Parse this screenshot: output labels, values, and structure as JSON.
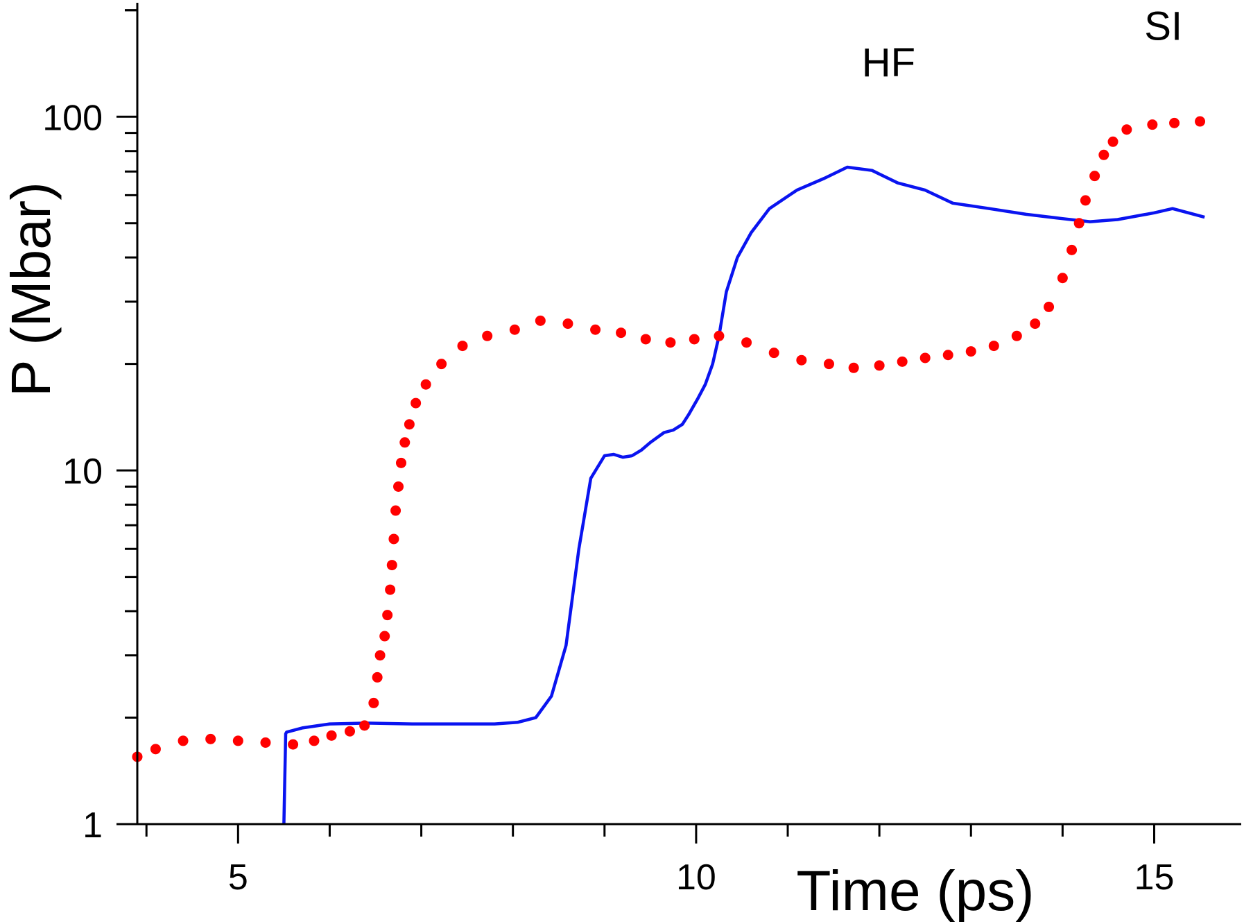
{
  "chart_data": {
    "type": "line",
    "title": "",
    "xlabel": "Time (ps)",
    "ylabel": "P (Mbar)",
    "xlim": [
      3.9,
      15.95
    ],
    "ylim": [
      1,
      210
    ],
    "yscale": "log",
    "grid": false,
    "x_ticks": [
      5,
      10,
      15
    ],
    "x_tick_labels": [
      "5",
      "10",
      "15"
    ],
    "y_ticks": [
      1,
      10,
      100
    ],
    "y_tick_labels": [
      "1",
      "10",
      "100"
    ],
    "series": [
      {
        "name": "HF",
        "style": "solid",
        "color": "#0a14f0",
        "x": [
          5.5,
          5.52,
          5.53,
          5.7,
          6.0,
          6.4,
          6.9,
          7.4,
          7.8,
          8.05,
          8.25,
          8.42,
          8.58,
          8.72,
          8.85,
          9.0,
          9.1,
          9.2,
          9.3,
          9.4,
          9.5,
          9.65,
          9.75,
          9.85,
          9.92,
          10.02,
          10.1,
          10.18,
          10.25,
          10.33,
          10.45,
          10.6,
          10.8,
          11.1,
          11.4,
          11.65,
          11.92,
          12.2,
          12.5,
          12.8,
          13.2,
          13.6,
          14.0,
          14.3,
          14.6,
          15.0,
          15.2,
          15.55
        ],
        "y": [
          1.0,
          1.8,
          1.82,
          1.87,
          1.92,
          1.93,
          1.92,
          1.92,
          1.92,
          1.94,
          2.0,
          2.3,
          3.2,
          6.0,
          9.5,
          11.0,
          11.1,
          10.9,
          11.0,
          11.4,
          12.0,
          12.8,
          13.0,
          13.5,
          14.4,
          16.0,
          17.5,
          20.0,
          24.0,
          32.0,
          40.0,
          47.0,
          55.0,
          62.0,
          67.0,
          72.0,
          70.5,
          65.0,
          62.0,
          57.0,
          55.0,
          53.0,
          51.5,
          50.5,
          51.2,
          53.5,
          55.0,
          52.0
        ]
      },
      {
        "name": "SI",
        "style": "dotted",
        "color": "#ff0000",
        "x": [
          3.9,
          4.1,
          4.4,
          4.7,
          5.0,
          5.3,
          5.6,
          5.83,
          6.02,
          6.22,
          6.38,
          6.48,
          6.52,
          6.55,
          6.6,
          6.63,
          6.66,
          6.68,
          6.7,
          6.72,
          6.75,
          6.78,
          6.82,
          6.87,
          6.94,
          7.05,
          7.22,
          7.45,
          7.72,
          8.02,
          8.3,
          8.6,
          8.9,
          9.18,
          9.45,
          9.72,
          9.98,
          10.25,
          10.55,
          10.85,
          11.15,
          11.45,
          11.72,
          12.0,
          12.25,
          12.5,
          12.75,
          13.0,
          13.25,
          13.5,
          13.7,
          13.85,
          14.0,
          14.1,
          14.18,
          14.25,
          14.35,
          14.45,
          14.55,
          14.7,
          14.98,
          15.22,
          15.5
        ],
        "y": [
          1.55,
          1.63,
          1.72,
          1.74,
          1.72,
          1.7,
          1.68,
          1.72,
          1.78,
          1.83,
          1.9,
          2.2,
          2.6,
          3.0,
          3.4,
          3.9,
          4.6,
          5.4,
          6.4,
          7.7,
          9.0,
          10.5,
          12.0,
          13.5,
          15.5,
          17.5,
          20.0,
          22.5,
          24.0,
          25.0,
          26.5,
          26.0,
          25.0,
          24.5,
          23.5,
          23.0,
          23.5,
          24.0,
          23.0,
          21.5,
          20.5,
          20.0,
          19.5,
          19.8,
          20.3,
          20.8,
          21.2,
          21.7,
          22.5,
          24.0,
          26.0,
          29.0,
          35.0,
          42.0,
          50.0,
          58.0,
          68.0,
          78.0,
          85.0,
          92.0,
          95.0,
          96.0,
          97.0
        ]
      }
    ],
    "annotations": [
      {
        "text": "HF",
        "x": 12.1,
        "y": 130
      },
      {
        "text": "SI",
        "x": 15.1,
        "y": 165
      }
    ]
  }
}
